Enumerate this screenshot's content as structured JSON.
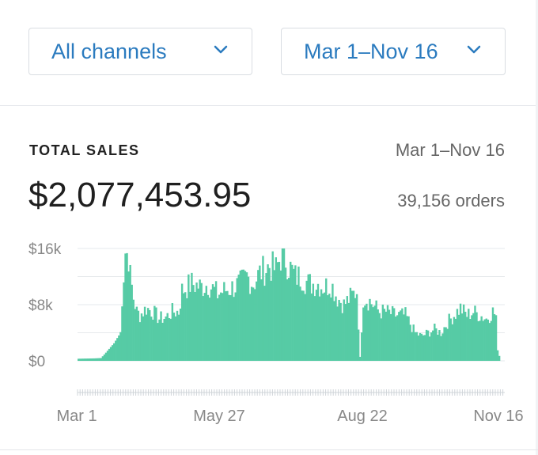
{
  "filters": {
    "channels_label": "All channels",
    "date_label": "Mar 1–Nov 16"
  },
  "summary": {
    "title": "TOTAL SALES",
    "range": "Mar 1–Nov 16",
    "total": "$2,077,453.95",
    "orders": "39,156 orders"
  },
  "colors": {
    "accent": "#2b7bbf",
    "bar": "#56cba5",
    "grid": "#e6e9ec"
  },
  "chart_data": {
    "type": "bar",
    "ylim": [
      0,
      16000
    ],
    "yticks": [
      {
        "value": 0,
        "label": "$0"
      },
      {
        "value": 8000,
        "label": "$8k"
      },
      {
        "value": 16000,
        "label": "$16k"
      }
    ],
    "xticks": [
      {
        "index": 0,
        "label": "Mar 1"
      },
      {
        "index": 87,
        "label": "May 27"
      },
      {
        "index": 174,
        "label": "Aug 22"
      },
      {
        "index": 260,
        "label": "Nov 16"
      }
    ],
    "x_start": "Mar 1",
    "x_end": "Nov 16",
    "keyframes": [
      [
        0,
        300
      ],
      [
        10,
        350
      ],
      [
        14,
        400
      ],
      [
        16,
        900
      ],
      [
        22,
        2500
      ],
      [
        26,
        4000
      ],
      [
        27,
        9000
      ],
      [
        29,
        15600
      ],
      [
        31,
        15000
      ],
      [
        32,
        12000
      ],
      [
        34,
        9000
      ],
      [
        36,
        7000
      ],
      [
        38,
        6500
      ],
      [
        42,
        7500
      ],
      [
        46,
        7000
      ],
      [
        50,
        6000
      ],
      [
        54,
        6200
      ],
      [
        58,
        7000
      ],
      [
        62,
        7000
      ],
      [
        64,
        10000
      ],
      [
        70,
        11000
      ],
      [
        76,
        10500
      ],
      [
        80,
        11000
      ],
      [
        86,
        9500
      ],
      [
        90,
        10000
      ],
      [
        96,
        10500
      ],
      [
        100,
        11000
      ],
      [
        104,
        12000
      ],
      [
        108,
        11000
      ],
      [
        112,
        12500
      ],
      [
        118,
        13500
      ],
      [
        122,
        13000
      ],
      [
        126,
        15500
      ],
      [
        130,
        13500
      ],
      [
        134,
        12000
      ],
      [
        138,
        12000
      ],
      [
        142,
        11000
      ],
      [
        148,
        11000
      ],
      [
        152,
        10500
      ],
      [
        156,
        11000
      ],
      [
        160,
        9000
      ],
      [
        164,
        8000
      ],
      [
        168,
        9000
      ],
      [
        172,
        10000
      ],
      [
        174,
        500
      ],
      [
        176,
        9000
      ],
      [
        180,
        8500
      ],
      [
        186,
        7000
      ],
      [
        190,
        7000
      ],
      [
        196,
        6500
      ],
      [
        202,
        6500
      ],
      [
        208,
        4000
      ],
      [
        212,
        3500
      ],
      [
        216,
        4000
      ],
      [
        220,
        4500
      ],
      [
        224,
        4000
      ],
      [
        228,
        5500
      ],
      [
        232,
        6500
      ],
      [
        236,
        7500
      ],
      [
        240,
        6500
      ],
      [
        244,
        7000
      ],
      [
        248,
        6500
      ],
      [
        252,
        6000
      ],
      [
        256,
        7000
      ],
      [
        258,
        6500
      ],
      [
        259,
        1500
      ],
      [
        260,
        700
      ]
    ]
  }
}
